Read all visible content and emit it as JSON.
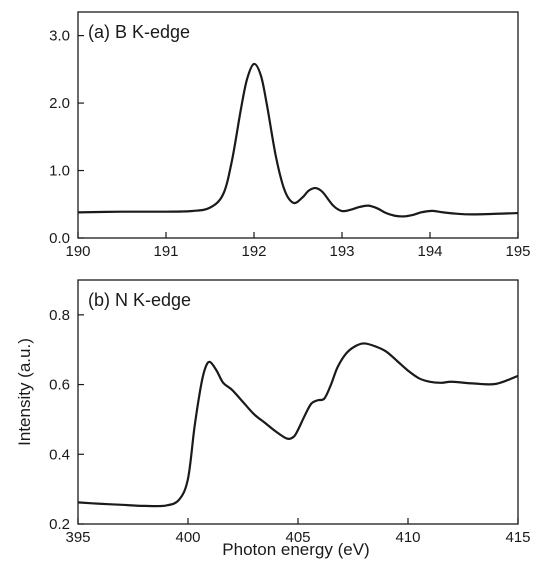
{
  "figure": {
    "ylabel": "Intensity (a.u.)",
    "xlabel": "Photon energy (eV)",
    "line_color": "#1a1a1a"
  },
  "chart_data": [
    {
      "type": "line",
      "title": "(a) B K-edge",
      "xlabel": "",
      "ylabel": "Intensity (a.u.)",
      "xlim": [
        190,
        195
      ],
      "ylim": [
        0.0,
        3.35
      ],
      "xticks": [
        190,
        191,
        192,
        193,
        194,
        195
      ],
      "xtick_labels": [
        "190",
        "191",
        "192",
        "193",
        "194",
        "195"
      ],
      "yticks": [
        0.0,
        1.0,
        2.0,
        3.0
      ],
      "ytick_labels": [
        "0.0",
        "1.0",
        "2.0",
        "3.0"
      ],
      "grid": false,
      "series": [
        {
          "x": [
            190.0,
            190.5,
            191.0,
            191.3,
            191.5,
            191.65,
            191.75,
            191.85,
            191.92,
            192.0,
            192.08,
            192.15,
            192.25,
            192.35,
            192.45,
            192.55,
            192.62,
            192.7,
            192.78,
            192.9,
            193.0,
            193.1,
            193.2,
            193.3,
            193.4,
            193.5,
            193.6,
            193.7,
            193.8,
            193.9,
            194.0,
            194.05,
            194.15,
            194.3,
            194.5,
            195.0
          ],
          "y": [
            0.38,
            0.39,
            0.39,
            0.4,
            0.45,
            0.65,
            1.15,
            1.9,
            2.35,
            2.58,
            2.4,
            1.95,
            1.2,
            0.7,
            0.52,
            0.6,
            0.7,
            0.74,
            0.68,
            0.48,
            0.4,
            0.42,
            0.46,
            0.48,
            0.44,
            0.37,
            0.33,
            0.32,
            0.34,
            0.38,
            0.4,
            0.4,
            0.38,
            0.36,
            0.35,
            0.37
          ]
        }
      ]
    },
    {
      "type": "line",
      "title": "(b) N K-edge",
      "xlabel": "Photon energy (eV)",
      "ylabel": "Intensity (a.u.)",
      "xlim": [
        395,
        415
      ],
      "ylim": [
        0.2,
        0.9
      ],
      "xticks": [
        395,
        400,
        405,
        410,
        415
      ],
      "xtick_labels": [
        "395",
        "400",
        "405",
        "410",
        "415"
      ],
      "yticks": [
        0.2,
        0.4,
        0.6,
        0.8
      ],
      "ytick_labels": [
        "0.2",
        "0.4",
        "0.6",
        "0.8"
      ],
      "grid": false,
      "series": [
        {
          "x": [
            395.0,
            396.0,
            397.0,
            398.0,
            399.0,
            399.6,
            400.0,
            400.3,
            400.6,
            400.8,
            401.0,
            401.3,
            401.6,
            402.0,
            402.5,
            403.0,
            403.5,
            404.0,
            404.5,
            404.8,
            405.0,
            405.3,
            405.6,
            405.9,
            406.2,
            406.5,
            406.8,
            407.2,
            407.6,
            408.0,
            408.5,
            409.0,
            409.5,
            410.0,
            410.5,
            411.0,
            411.5,
            412.0,
            413.0,
            414.0,
            415.0
          ],
          "y": [
            0.262,
            0.258,
            0.255,
            0.252,
            0.253,
            0.27,
            0.33,
            0.48,
            0.6,
            0.65,
            0.665,
            0.64,
            0.605,
            0.585,
            0.55,
            0.515,
            0.49,
            0.465,
            0.445,
            0.45,
            0.47,
            0.51,
            0.545,
            0.555,
            0.56,
            0.6,
            0.65,
            0.69,
            0.71,
            0.718,
            0.71,
            0.695,
            0.668,
            0.64,
            0.618,
            0.608,
            0.605,
            0.608,
            0.603,
            0.602,
            0.625
          ]
        }
      ]
    }
  ]
}
